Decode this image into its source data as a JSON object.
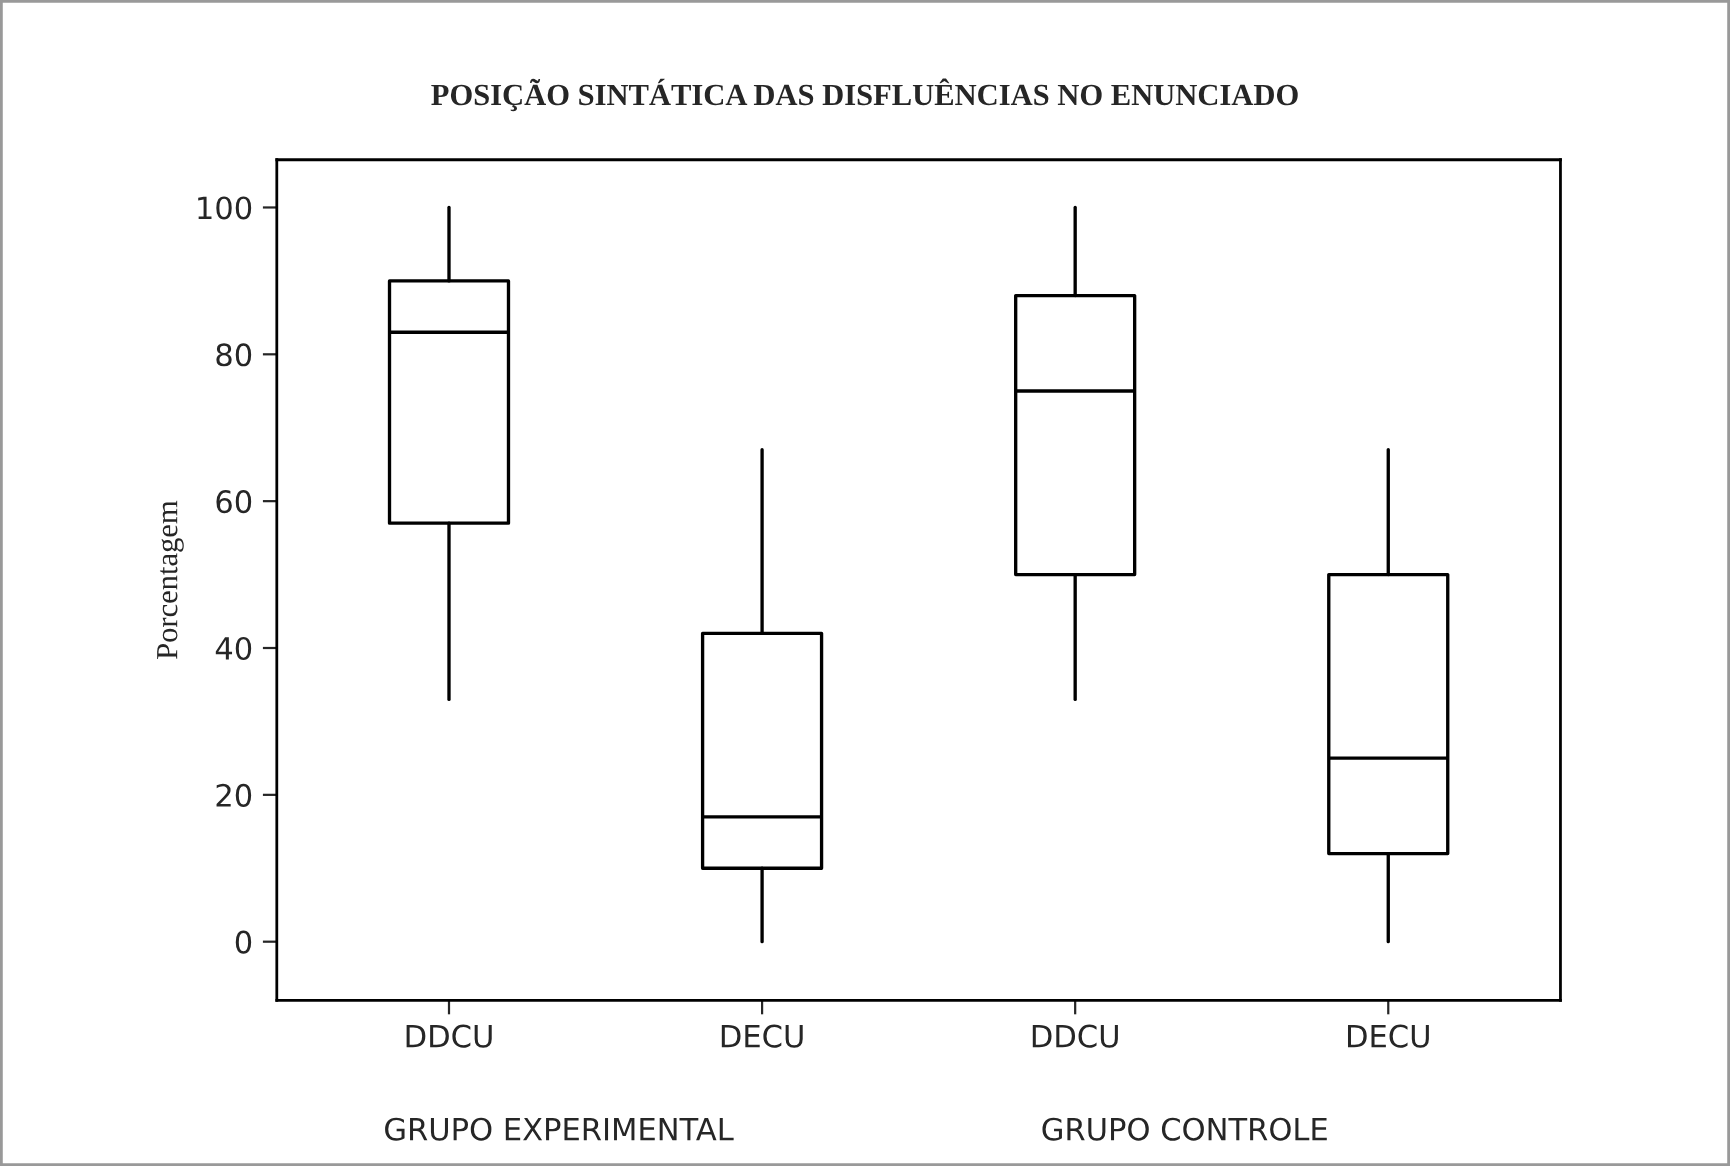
{
  "chart_data": {
    "type": "box",
    "title": "POSIÇÃO SINTÁTICA DAS DISFLUÊNCIAS NO ENUNCIADO",
    "ylabel": "Porcentagem",
    "categories": [
      "DDCU",
      "DECU",
      "DDCU",
      "DECU"
    ],
    "boxes": [
      {
        "low": 33,
        "q1": 57,
        "median": 83,
        "q3": 90,
        "high": 100
      },
      {
        "low": 0,
        "q1": 10,
        "median": 17,
        "q3": 42,
        "high": 67
      },
      {
        "low": 33,
        "q1": 50,
        "median": 75,
        "q3": 88,
        "high": 100
      },
      {
        "low": 0,
        "q1": 12,
        "median": 25,
        "q3": 50,
        "high": 67
      }
    ],
    "ylim": [
      -8,
      106.5
    ],
    "yticks": [
      0,
      20,
      40,
      60,
      80,
      100
    ],
    "grid": false,
    "annotations": [
      "GRUPO EXPERIMENTAL",
      "GRUPO CONTROLE"
    ]
  }
}
